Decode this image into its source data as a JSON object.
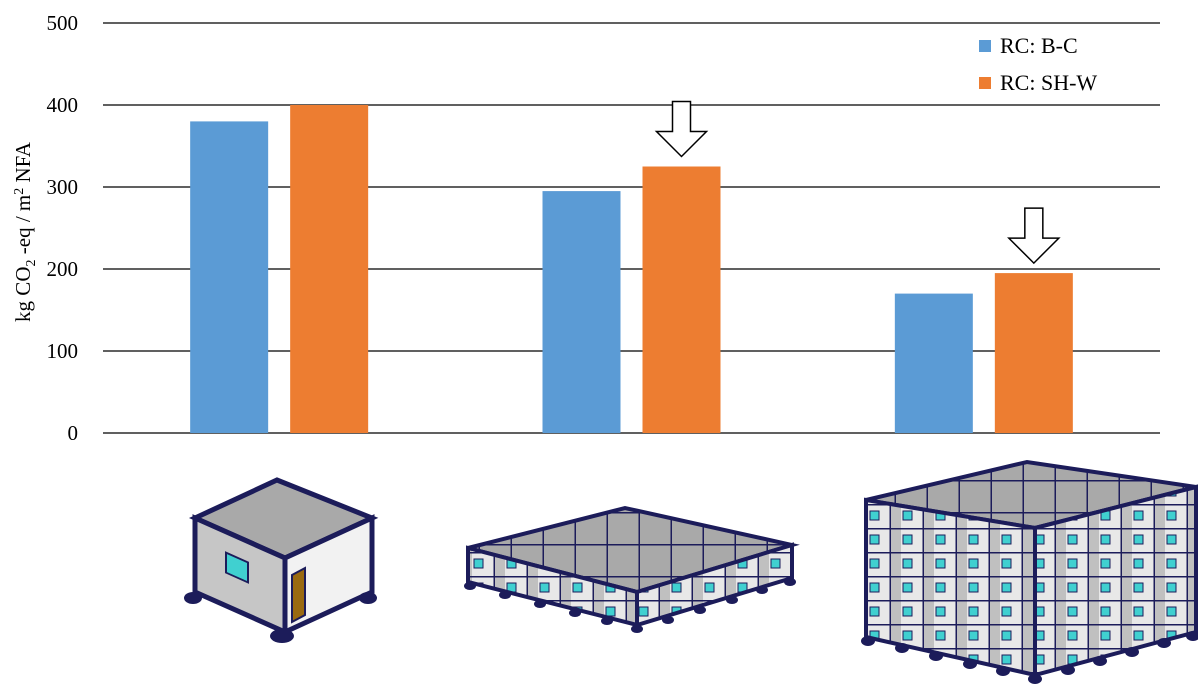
{
  "chart_data": {
    "type": "bar",
    "ylabel": {
      "prefix": "kg CO",
      "sub": "2",
      "middle": " -eq / m",
      "sup": "2",
      "suffix": " NFA"
    },
    "ylim": [
      0,
      500
    ],
    "yticks": [
      "0",
      "100",
      "200",
      "300",
      "400",
      "500"
    ],
    "grid": true,
    "legend_position": "top-right",
    "categories": [
      "single-unit",
      "one-storey grid",
      "multi-storey block"
    ],
    "series": [
      {
        "name": "RC: B-C",
        "color": "#5b9bd5",
        "values": [
          380,
          295,
          170
        ]
      },
      {
        "name": "RC: SH-W",
        "color": "#ed7d31",
        "values": [
          400,
          325,
          195
        ]
      }
    ],
    "annotations": [
      {
        "type": "down-arrow",
        "category_index": 1
      },
      {
        "type": "down-arrow",
        "category_index": 2
      }
    ],
    "illustrations": [
      "single-module-building",
      "single-storey-modular-grid",
      "multi-storey-modular-block"
    ]
  }
}
